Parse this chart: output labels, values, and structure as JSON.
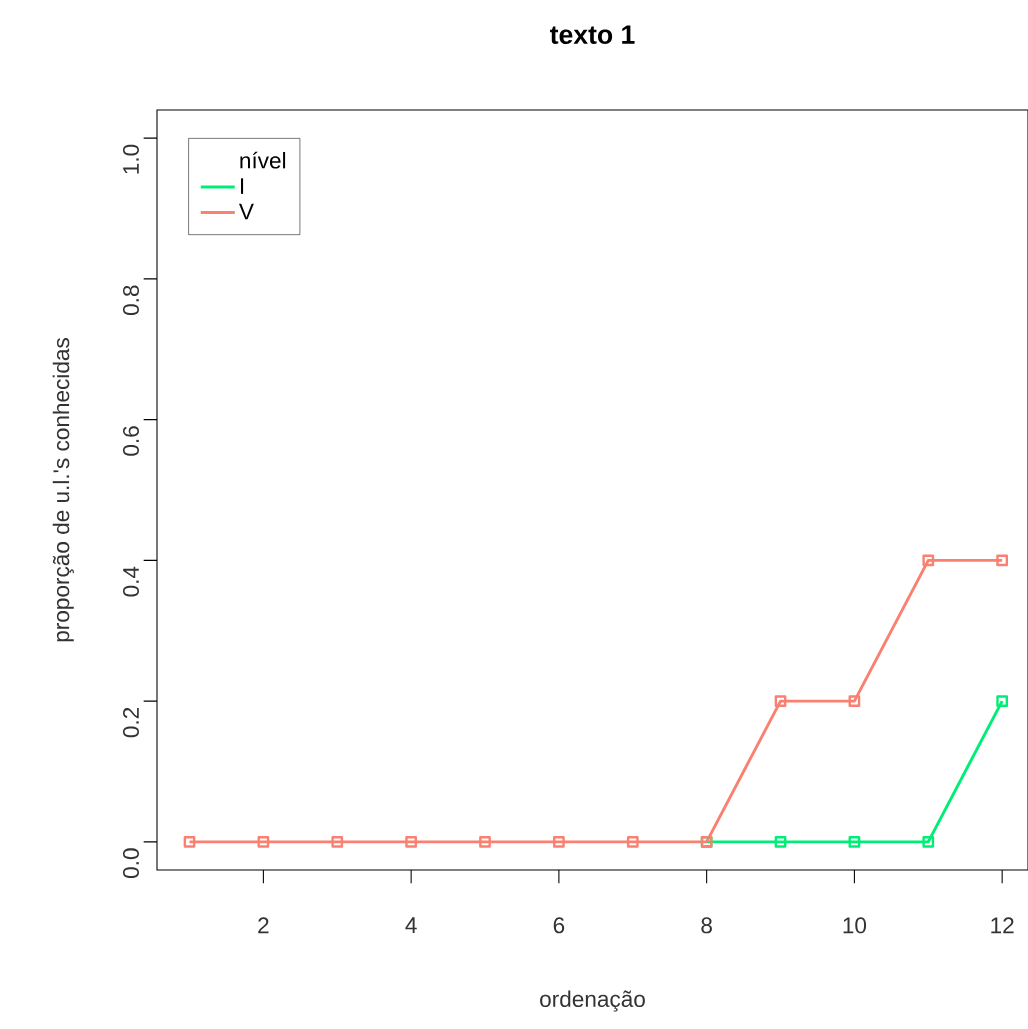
{
  "chart_data": {
    "type": "line",
    "title": "texto 1",
    "xlabel": "ordenação",
    "ylabel": "proporção de u.l.'s conhecidas",
    "x": [
      1,
      2,
      3,
      4,
      5,
      6,
      7,
      8,
      9,
      10,
      11,
      12
    ],
    "series": [
      {
        "name": "I",
        "color": "#00ee76",
        "values": [
          null,
          null,
          null,
          null,
          null,
          null,
          null,
          0,
          0,
          0,
          0,
          0.2
        ]
      },
      {
        "name": "V",
        "color": "#fa8072",
        "values": [
          0,
          0,
          0,
          0,
          0,
          0,
          0,
          0,
          0.2,
          0.2,
          0.4,
          0.4
        ]
      }
    ],
    "legend_title": "nível",
    "legend": "top left",
    "marker": "square",
    "line_style": "solid",
    "xlim": [
      0.56,
      12.35
    ],
    "ylim": [
      -0.04,
      1.04
    ],
    "xticks": [
      2,
      4,
      6,
      8,
      10,
      12
    ],
    "yticks": [
      {
        "value": 0,
        "label": "0.0"
      },
      0.2,
      0.4,
      0.6,
      0.8,
      {
        "value": 1,
        "label": "1.0"
      }
    ],
    "grid": false
  }
}
